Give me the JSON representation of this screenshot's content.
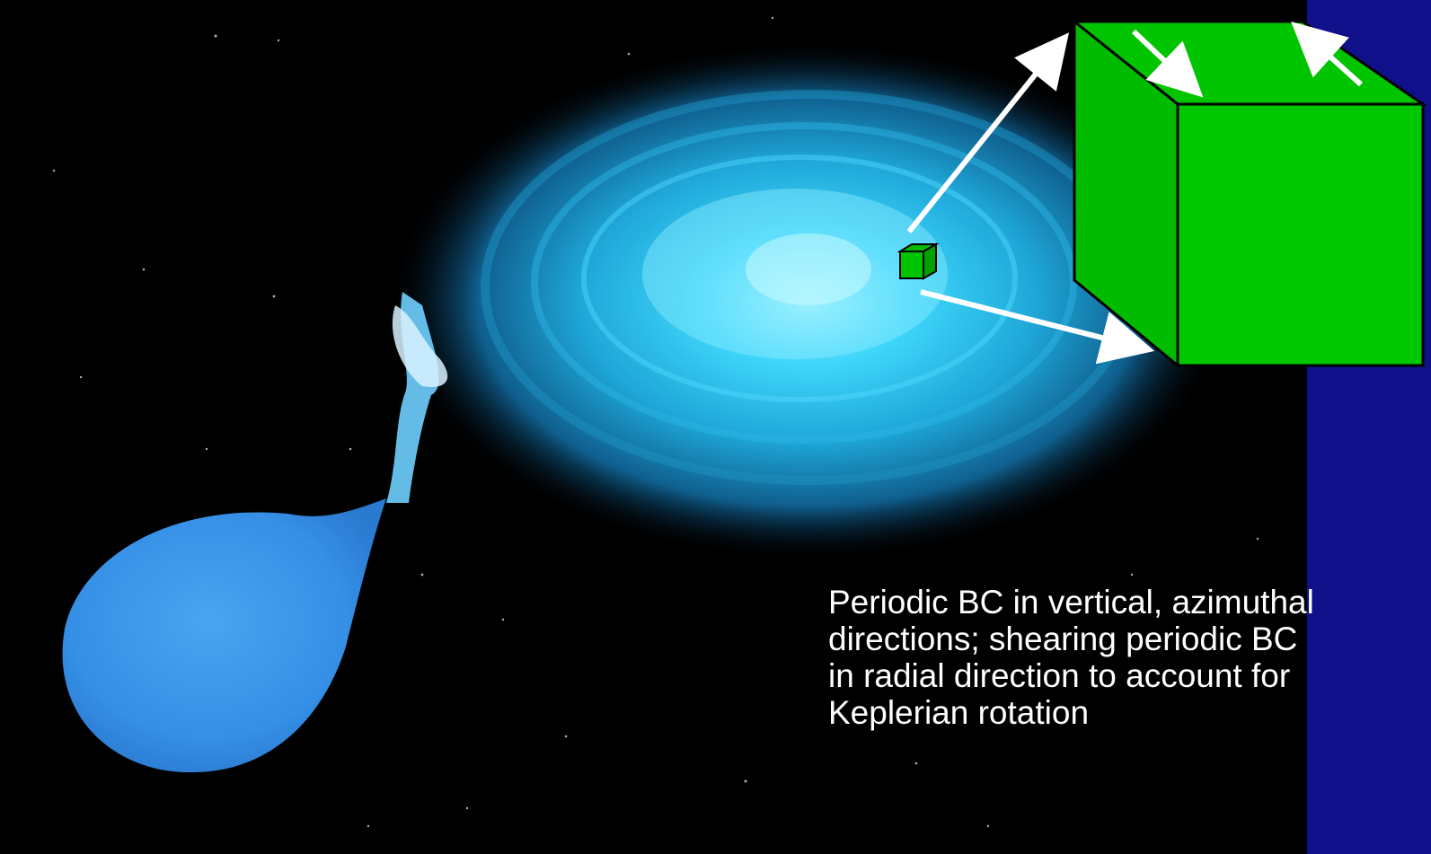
{
  "colors": {
    "slide_background": "#10108a",
    "space_background": "#000000",
    "disk": "#2ec8f2",
    "star": "#3b9ae8",
    "box_green": "#00c400",
    "arrow_white": "#ffffff"
  },
  "caption": {
    "lines": [
      "Periodic BC in vertical, azimuthal",
      "directions; shearing periodic BC",
      "in radial direction to account for",
      "Keplerian rotation"
    ]
  },
  "icons": {
    "small_box": "green-cube-icon",
    "large_box": "green-cube-zoom-icon",
    "arrows": "white-arrow-icon"
  }
}
